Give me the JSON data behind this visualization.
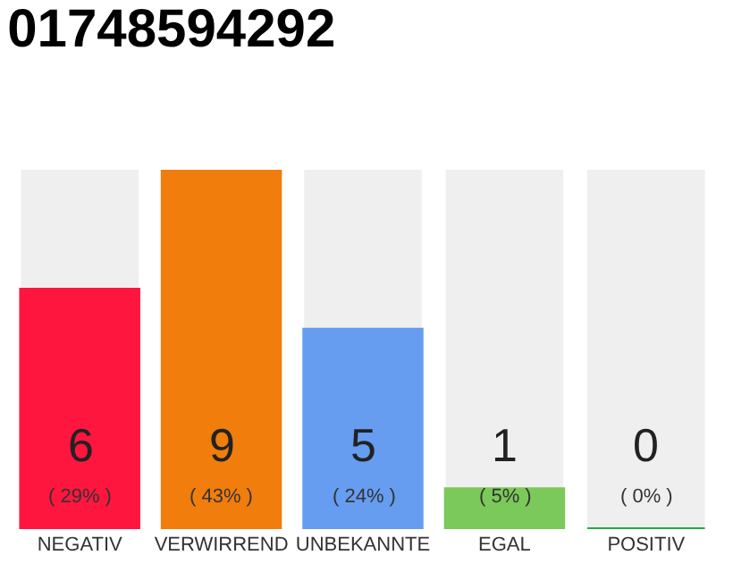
{
  "chart_data": {
    "type": "bar",
    "title": "01748594292",
    "categories": [
      "NEGATIV",
      "VERWIRREND",
      "UNBEKANNTE",
      "EGAL",
      "POSITIV"
    ],
    "values": [
      6,
      9,
      5,
      1,
      0
    ],
    "colors": [
      "#fe163e",
      "#f07d0c",
      "#669df0",
      "#7bc95a",
      "#22aa44"
    ],
    "value_labels": [
      "6\n( 29% )",
      "9\n( 43% )",
      "5\n( 24% )",
      "1\n( 5% )",
      "0\n( 0% )"
    ],
    "ylim": [
      0,
      9
    ],
    "tick_labels": "x",
    "grid": false
  }
}
